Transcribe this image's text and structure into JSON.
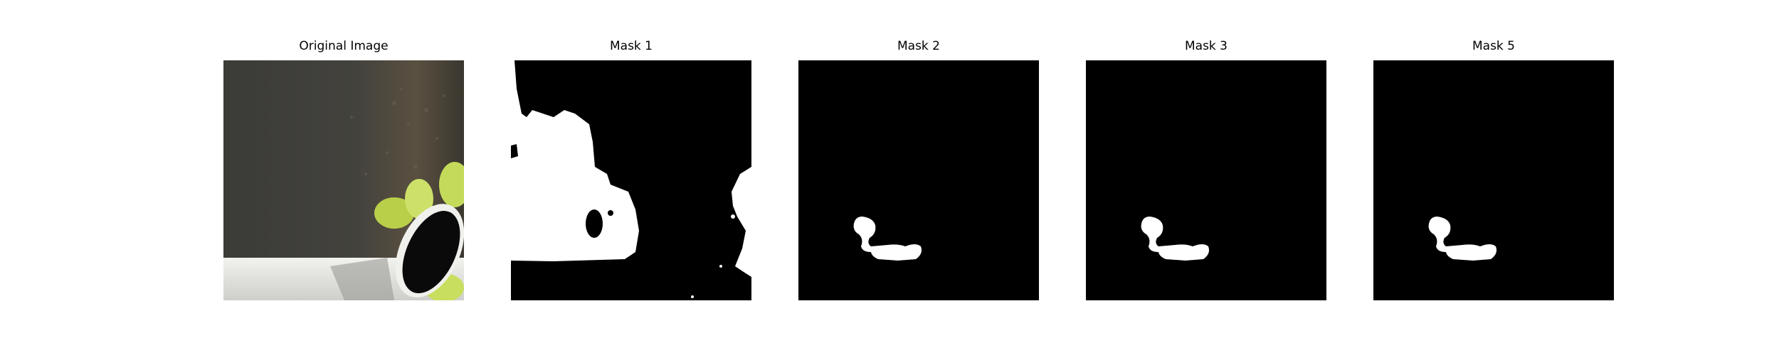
{
  "figure": {
    "panels": [
      {
        "title": "Original Image",
        "kind": "photo"
      },
      {
        "title": "Mask 1",
        "kind": "mask"
      },
      {
        "title": "Mask 2",
        "kind": "mask"
      },
      {
        "title": "Mask 3",
        "kind": "mask"
      },
      {
        "title": "Mask 5",
        "kind": "mask"
      }
    ]
  },
  "colors": {
    "mask_background": "#000000",
    "mask_foreground": "#ffffff",
    "photo_background": "#3a3a36",
    "leaf": "#b8d24a",
    "pipe": "#e8e8e4",
    "pipe_opening": "#0a0a0a"
  }
}
